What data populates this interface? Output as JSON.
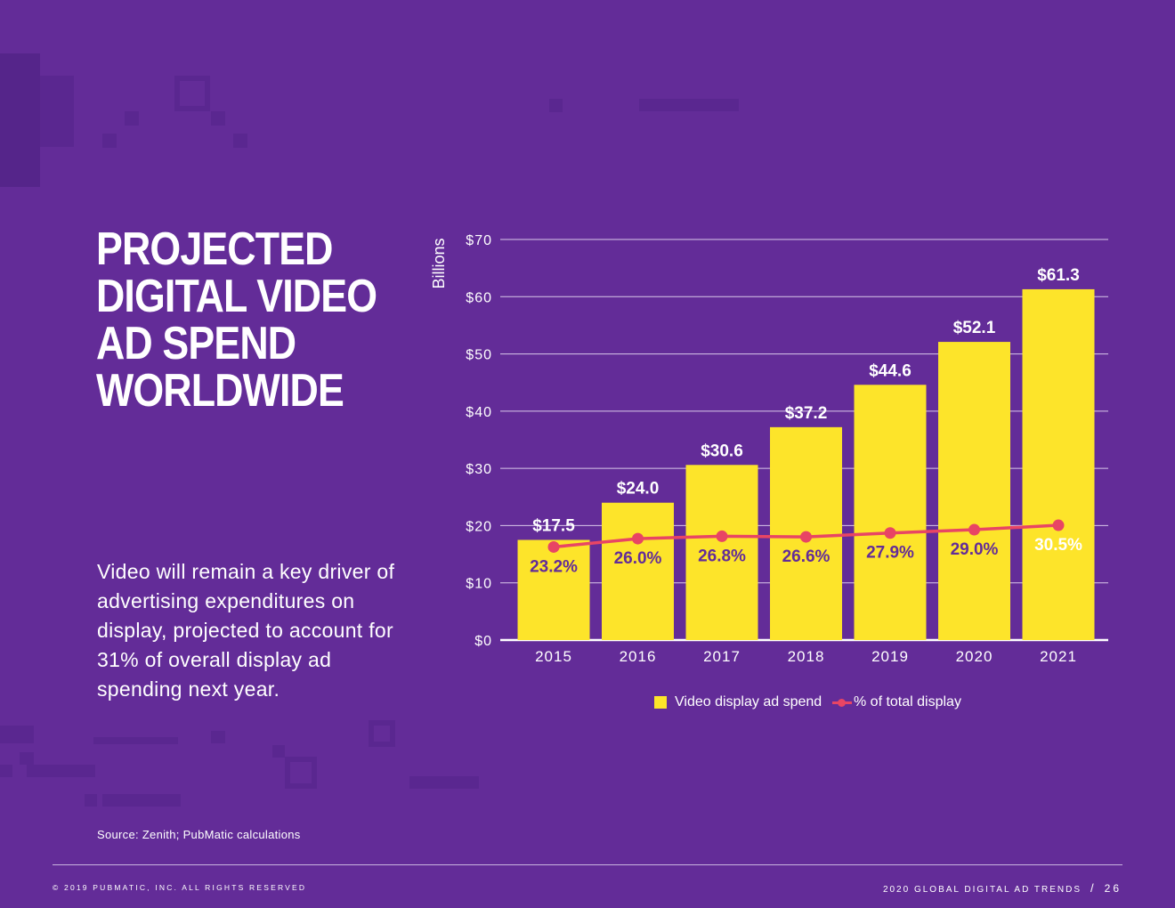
{
  "title_lines": [
    "PROJECTED",
    "DIGITAL VIDEO",
    "AD SPEND",
    "WORLDWIDE"
  ],
  "body": "Video will remain a key driver of advertising expenditures on display, projected to account for 31% of overall display ad spending next year.",
  "source": "Source: Zenith; PubMatic calculations",
  "footer": {
    "copyright": "© 2019 PUBMATIC, INC. ALL RIGHTS RESERVED",
    "report": "2020 GLOBAL DIGITAL AD TRENDS",
    "separator": "/",
    "page": "26"
  },
  "colors": {
    "background": "#632c98",
    "bar": "#fde42a",
    "line": "#e84564"
  },
  "chart_data": {
    "type": "bar",
    "categories": [
      "2015",
      "2016",
      "2017",
      "2018",
      "2019",
      "2020",
      "2021"
    ],
    "ylabel": "Billions",
    "ylim": [
      0,
      70
    ],
    "yticks": [
      0,
      10,
      20,
      30,
      40,
      50,
      60,
      70
    ],
    "ytick_labels": [
      "$0",
      "$10",
      "$20",
      "$30",
      "$40",
      "$50",
      "$60",
      "$70"
    ],
    "grid": true,
    "series": [
      {
        "name": "Video display ad spend",
        "type": "bar",
        "values": [
          17.5,
          24.0,
          30.6,
          37.2,
          44.6,
          52.1,
          61.3
        ],
        "labels": [
          "$17.5",
          "$24.0",
          "$30.6",
          "$37.2",
          "$44.6",
          "$52.1",
          "$61.3"
        ]
      },
      {
        "name": "% of total display",
        "type": "line",
        "values": [
          23.2,
          26.0,
          26.8,
          26.6,
          27.9,
          29.0,
          30.5
        ],
        "labels": [
          "23.2%",
          "26.0%",
          "26.8%",
          "26.6%",
          "27.9%",
          "29.0%",
          "30.5%"
        ]
      }
    ],
    "legend": "bottom-center"
  }
}
